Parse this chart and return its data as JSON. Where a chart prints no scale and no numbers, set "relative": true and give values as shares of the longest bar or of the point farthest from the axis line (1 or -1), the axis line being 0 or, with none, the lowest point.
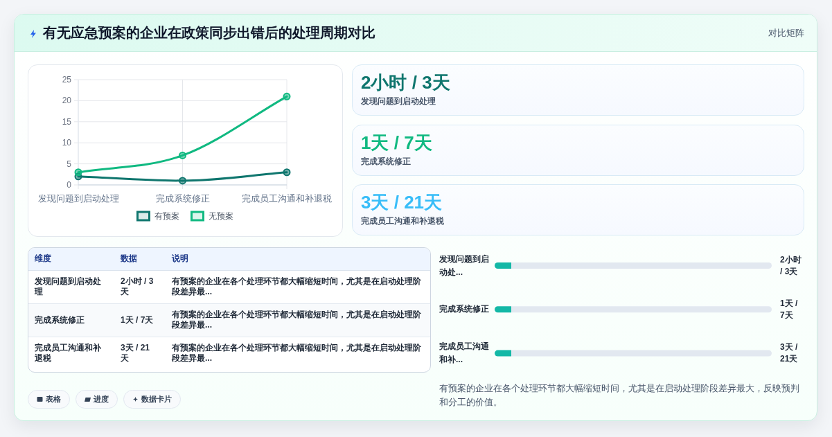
{
  "chart_data": [
    {
      "type": "other",
      "title": "有无应急预案的企业在政策同步出错后的处理周期对比",
      "annotations": [
        "对比矩阵"
      ]
    },
    {
      "type": "line",
      "categories": [
        "发现问题到启动处理",
        "完成系统修正",
        "完成员工沟通和补退税"
      ],
      "series": [
        {
          "name": "有预案",
          "color": "#0f766e",
          "values": [
            2,
            1,
            3
          ]
        },
        {
          "name": "无预案",
          "color": "#10b981",
          "values": [
            3,
            7,
            21
          ]
        }
      ],
      "ylim": [
        0,
        25
      ],
      "yticks": [
        0,
        5,
        10,
        15,
        20,
        25
      ],
      "grid": true,
      "legend": "bottom",
      "marker": "circle"
    },
    {
      "type": "other",
      "categories": [
        "发现问题到启动处理",
        "完成系统修正",
        "完成员工沟通和补退税"
      ],
      "value_labels": [
        "2小时 / 3天",
        "1天 / 7天",
        "3天 / 21天"
      ]
    },
    {
      "type": "other",
      "categories": [
        "维度",
        "数据",
        "说明"
      ],
      "cell_labels": [
        [
          "发现问题到启动处理",
          "2小时 / 3天",
          "有预案的企业在各个处理环节都大幅缩短时间，尤其是在启动处理阶段差异最..."
        ],
        [
          "完成系统修正",
          "1天 / 7天",
          "有预案的企业在各个处理环节都大幅缩短时间，尤其是在启动处理阶段差异最..."
        ],
        [
          "完成员工沟通和补退税",
          "3天 / 21天",
          "有预案的企业在各个处理环节都大幅缩短时间，尤其是在启动处理阶段差异最..."
        ]
      ]
    },
    {
      "type": "bar",
      "orientation": "horizontal",
      "stacked": true,
      "relative": true,
      "categories": [
        "发现问题到启动处...",
        "完成系统修正",
        "完成员工沟通和补..."
      ],
      "y2_categories": [
        "2小时 / 3天",
        "1天 / 7天",
        "3天 / 21天"
      ],
      "series": [
        {
          "color": "#14b8a6",
          "values": [
            0.06,
            0.06,
            0.06
          ]
        },
        {
          "color": "#e2e8f0",
          "values": [
            0.94,
            0.94,
            0.94
          ]
        }
      ],
      "annotations": [
        "有预案的企业在各个处理环节都大幅缩短时间，尤其是在启动处理阶段差异最大，反映预判和分工的价值。"
      ]
    },
    {
      "type": "other",
      "annotations": [
        "表格",
        "进度",
        "数据卡片"
      ]
    }
  ]
}
